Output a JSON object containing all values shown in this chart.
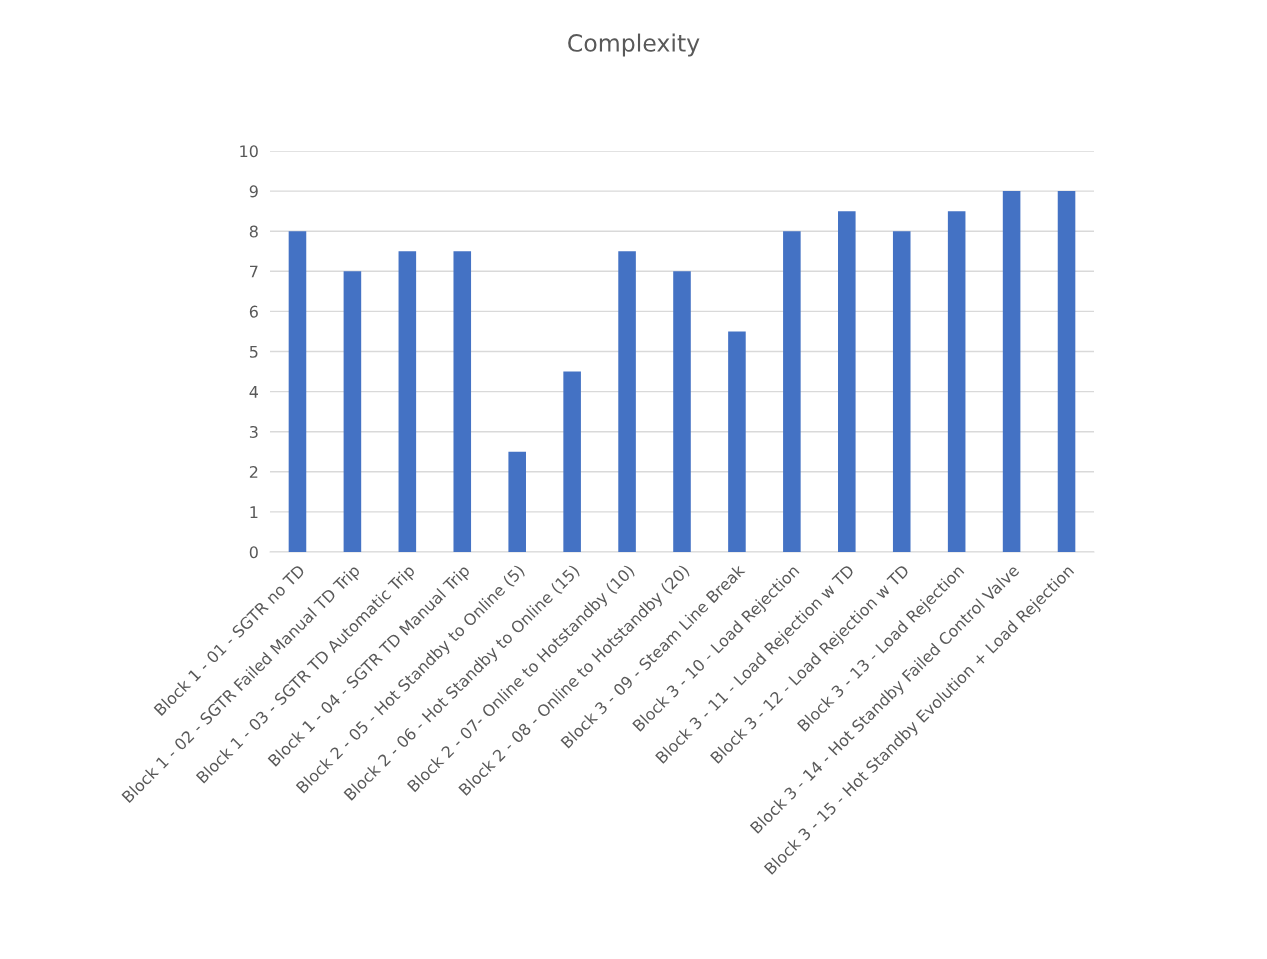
{
  "chart_data": {
    "type": "bar",
    "title": "Complexity",
    "categories": [
      "Block 1 - 01 - SGTR no TD",
      "Block 1 - 02 - SGTR Failed Manual TD Trip",
      "Block 1 - 03 - SGTR TD Automatic Trip",
      "Block 1 - 04 - SGTR TD Manual Trip",
      "Block 2 - 05 - Hot Standby to Online (5)",
      "Block 2 - 06 - Hot Standby to Online (15)",
      "Block 2 - 07- Online to Hotstandby (10)",
      "Block 2 - 08 - Online to Hotstandby (20)",
      "Block 3 - 09 - Steam Line Break",
      "Block 3 - 10 - Load Rejection",
      "Block 3 - 11 - Load Rejection w TD",
      "Block 3 - 12 - Load Rejection w TD",
      "Block 3 - 13 - Load Rejection",
      "Block 3 - 14 - Hot Standby Failed Control Valve",
      "Block 3 - 15 - Hot Standby Evolution + Load Rejection"
    ],
    "values": [
      8,
      7,
      7.5,
      7.5,
      2.5,
      4.5,
      7.5,
      7,
      5.5,
      8,
      8.5,
      8,
      8.5,
      9,
      9
    ],
    "color": "#4472c4",
    "ylim": [
      0,
      10
    ],
    "yticks": [
      0,
      1,
      2,
      3,
      4,
      5,
      6,
      7,
      8,
      9,
      10
    ],
    "grid": "y"
  }
}
